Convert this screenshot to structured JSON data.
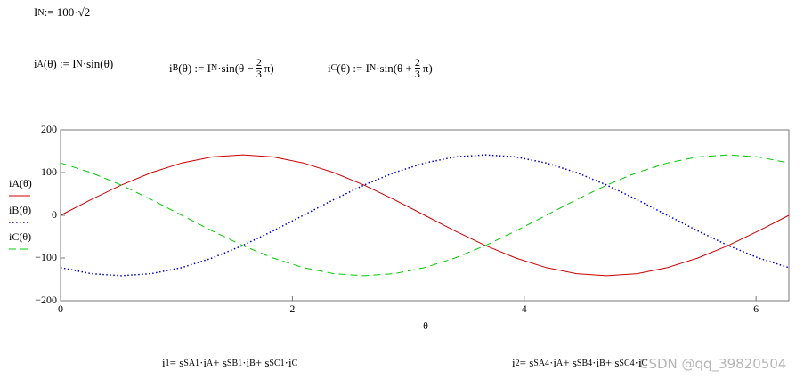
{
  "equations": [
    {
      "parts": [
        {
          "text": "I"
        },
        {
          "sub": "N"
        },
        {
          "text": " := 100·√2"
        }
      ]
    },
    {
      "parts": [
        {
          "text": "i"
        },
        {
          "sub": "A"
        },
        {
          "text": "(θ) := I"
        },
        {
          "sub": "N"
        },
        {
          "text": "·sin(θ)"
        }
      ]
    },
    {
      "parts": [
        {
          "text": "i"
        },
        {
          "sub": "B"
        },
        {
          "text": "(θ) := I"
        },
        {
          "sub": "N"
        },
        {
          "text": "·sin(θ − "
        },
        {
          "num": "2",
          "den": "3"
        },
        {
          "text": "π)"
        }
      ]
    },
    {
      "parts": [
        {
          "text": "i"
        },
        {
          "sub": "C"
        },
        {
          "text": "(θ) := I"
        },
        {
          "sub": "N"
        },
        {
          "text": "·sin(θ + "
        },
        {
          "num": "2",
          "den": "3"
        },
        {
          "text": "π)"
        }
      ]
    },
    {
      "parts": [
        {
          "text": "i"
        },
        {
          "sub": "1"
        },
        {
          "text": " = s"
        },
        {
          "sub": "SA1"
        },
        {
          "text": "·i"
        },
        {
          "sub": "A"
        },
        {
          "text": " + s"
        },
        {
          "sub": "SB1"
        },
        {
          "text": "·i"
        },
        {
          "sub": "B"
        },
        {
          "text": " + s"
        },
        {
          "sub": "SC1"
        },
        {
          "text": "·i"
        },
        {
          "sub": "C"
        }
      ]
    },
    {
      "parts": [
        {
          "text": "i"
        },
        {
          "sub": "2"
        },
        {
          "text": " = s"
        },
        {
          "sub": "SA4"
        },
        {
          "text": "·i"
        },
        {
          "sub": "A"
        },
        {
          "text": " + s"
        },
        {
          "sub": "SB4"
        },
        {
          "text": "·i"
        },
        {
          "sub": "B"
        },
        {
          "text": " + s"
        },
        {
          "sub": "SC4"
        },
        {
          "text": "·i"
        },
        {
          "sub": "C"
        }
      ]
    }
  ],
  "watermark": "CSDN @qq_39820504",
  "chart_data": {
    "type": "line",
    "x_label": "θ",
    "x": [
      0,
      0.262,
      0.524,
      0.785,
      1.047,
      1.309,
      1.571,
      1.833,
      2.094,
      2.356,
      2.618,
      2.88,
      3.142,
      3.403,
      3.665,
      3.927,
      4.189,
      4.451,
      4.712,
      4.974,
      5.236,
      5.498,
      5.76,
      6.021,
      6.283
    ],
    "series": [
      {
        "name": "iA(θ)",
        "color": "#cc0000",
        "dash": "solid",
        "values": [
          0,
          36.6,
          70.71,
          100,
          122.47,
          136.6,
          141.42,
          136.6,
          122.47,
          100,
          70.71,
          36.6,
          0,
          -36.6,
          -70.71,
          -100,
          -122.47,
          -136.6,
          -141.42,
          -136.6,
          -122.47,
          -100,
          -70.71,
          -36.6,
          0
        ]
      },
      {
        "name": "iB(θ)",
        "color": "#0000cc",
        "dash": "dotted",
        "values": [
          -122.47,
          -136.6,
          -141.42,
          -136.6,
          -122.47,
          -100,
          -70.71,
          -36.6,
          0,
          36.6,
          70.71,
          100,
          122.47,
          136.6,
          141.42,
          136.6,
          122.47,
          100,
          70.71,
          36.6,
          0,
          -36.6,
          -70.71,
          -100,
          -122.47
        ]
      },
      {
        "name": "iC(θ)",
        "color": "#00cc00",
        "dash": "dashed",
        "values": [
          122.47,
          100,
          70.71,
          36.6,
          0,
          -36.6,
          -70.71,
          -100,
          -122.47,
          -136.6,
          -141.42,
          -136.6,
          -122.47,
          -100,
          -70.71,
          -36.6,
          0,
          36.6,
          70.71,
          100,
          122.47,
          136.6,
          141.42,
          136.6,
          122.47
        ]
      }
    ],
    "xlim": [
      0,
      6.283
    ],
    "xticks": [
      0,
      2,
      4,
      6
    ],
    "ylim": [
      -200,
      200
    ],
    "yticks": [
      {
        "value": -200,
        "label": "−200"
      },
      {
        "value": -100,
        "label": "−100"
      },
      0,
      100,
      200
    ],
    "grid": false
  }
}
